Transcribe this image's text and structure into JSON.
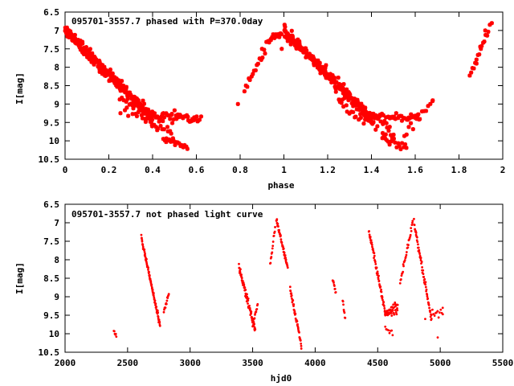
{
  "colors": {
    "points": "#ff0000",
    "axes": "#000000",
    "background": "#ffffff"
  },
  "chart_data": [
    {
      "type": "scatter",
      "title": "095701-3557.7 phased with P=370.0day",
      "xlabel": "phase",
      "ylabel": "I[mag]",
      "xlim": [
        0,
        2
      ],
      "ylim": [
        10.5,
        6.5
      ],
      "y_inverted": true,
      "xticks": [
        "0",
        "0.2",
        "0.4",
        "0.6",
        "0.8",
        "1",
        "1.2",
        "1.4",
        "1.6",
        "1.8",
        "2"
      ],
      "yticks": [
        "6.5",
        "7",
        "7.5",
        "8",
        "8.5",
        "9",
        "9.5",
        "10",
        "10.5"
      ],
      "grid": false,
      "marker": "star",
      "segments": [
        {
          "x0": 0.0,
          "y0": 7.0,
          "x1": 0.4,
          "y1": 9.4,
          "n": 260,
          "noise": 0.12
        },
        {
          "x0": 0.25,
          "y0": 8.9,
          "x1": 0.5,
          "y1": 9.85,
          "n": 45,
          "noise": 0.2
        },
        {
          "x0": 0.4,
          "y0": 9.3,
          "x1": 0.62,
          "y1": 9.4,
          "n": 45,
          "noise": 0.1
        },
        {
          "x0": 0.45,
          "y0": 9.9,
          "x1": 0.56,
          "y1": 10.2,
          "n": 18,
          "noise": 0.08
        },
        {
          "x0": 0.82,
          "y0": 8.6,
          "x1": 0.94,
          "y1": 7.2,
          "n": 20,
          "noise": 0.1
        },
        {
          "x0": 0.94,
          "y0": 7.2,
          "x1": 0.99,
          "y1": 7.1,
          "n": 10,
          "noise": 0.05
        },
        {
          "x0": 1.0,
          "y0": 7.0,
          "x1": 1.4,
          "y1": 9.4,
          "n": 260,
          "noise": 0.12
        },
        {
          "x0": 1.25,
          "y0": 8.9,
          "x1": 1.5,
          "y1": 9.85,
          "n": 45,
          "noise": 0.2
        },
        {
          "x0": 1.4,
          "y0": 9.3,
          "x1": 1.62,
          "y1": 9.4,
          "n": 45,
          "noise": 0.1
        },
        {
          "x0": 1.45,
          "y0": 9.9,
          "x1": 1.56,
          "y1": 10.2,
          "n": 18,
          "noise": 0.08
        },
        {
          "x0": 1.55,
          "y0": 9.8,
          "x1": 1.68,
          "y1": 8.9,
          "n": 14,
          "noise": 0.12
        },
        {
          "x0": 1.85,
          "y0": 8.2,
          "x1": 1.94,
          "y1": 6.9,
          "n": 16,
          "noise": 0.1
        }
      ],
      "points": [
        [
          0.79,
          9.0
        ],
        [
          1.18,
          8.0
        ],
        [
          0.9,
          7.5
        ],
        [
          1.9,
          7.5
        ],
        [
          1.88,
          7.9
        ],
        [
          1.92,
          7.0
        ],
        [
          1.95,
          6.8
        ],
        [
          0.99,
          7.5
        ],
        [
          1.05,
          7.4
        ],
        [
          1.68,
          8.9
        ]
      ]
    },
    {
      "type": "scatter",
      "title": "095701-3557.7 not phased light curve",
      "xlabel": "hjd0",
      "ylabel": "I[mag]",
      "xlim": [
        2000,
        5500
      ],
      "ylim": [
        10.5,
        6.5
      ],
      "y_inverted": true,
      "xticks": [
        "2000",
        "2500",
        "3000",
        "3500",
        "4000",
        "4500",
        "5000",
        "5500"
      ],
      "yticks": [
        "6.5",
        "7",
        "7.5",
        "8",
        "8.5",
        "9",
        "9.5",
        "10",
        "10.5"
      ],
      "grid": false,
      "marker": "dot",
      "segments": [
        {
          "x0": 2390,
          "y0": 9.95,
          "x1": 2410,
          "y1": 10.05,
          "n": 6,
          "noise": 0.03
        },
        {
          "x0": 2610,
          "y0": 7.4,
          "x1": 2760,
          "y1": 9.8,
          "n": 90,
          "noise": 0.06
        },
        {
          "x0": 2790,
          "y0": 9.4,
          "x1": 2830,
          "y1": 8.9,
          "n": 14,
          "noise": 0.06
        },
        {
          "x0": 3390,
          "y0": 8.2,
          "x1": 3520,
          "y1": 9.9,
          "n": 90,
          "noise": 0.08
        },
        {
          "x0": 3500,
          "y0": 9.8,
          "x1": 3540,
          "y1": 9.2,
          "n": 14,
          "noise": 0.06
        },
        {
          "x0": 3640,
          "y0": 8.1,
          "x1": 3680,
          "y1": 7.1,
          "n": 14,
          "noise": 0.08
        },
        {
          "x0": 3690,
          "y0": 6.9,
          "x1": 3780,
          "y1": 8.2,
          "n": 50,
          "noise": 0.06
        },
        {
          "x0": 3800,
          "y0": 8.8,
          "x1": 3890,
          "y1": 10.3,
          "n": 45,
          "noise": 0.08
        },
        {
          "x0": 4140,
          "y0": 8.55,
          "x1": 4165,
          "y1": 8.9,
          "n": 10,
          "noise": 0.04
        },
        {
          "x0": 4220,
          "y0": 9.1,
          "x1": 4240,
          "y1": 9.6,
          "n": 8,
          "noise": 0.06
        },
        {
          "x0": 4430,
          "y0": 7.2,
          "x1": 4560,
          "y1": 9.4,
          "n": 60,
          "noise": 0.08
        },
        {
          "x0": 4560,
          "y0": 9.5,
          "x1": 4660,
          "y1": 9.3,
          "n": 45,
          "noise": 0.12
        },
        {
          "x0": 4560,
          "y0": 9.8,
          "x1": 4620,
          "y1": 10.0,
          "n": 8,
          "noise": 0.06
        },
        {
          "x0": 4680,
          "y0": 8.6,
          "x1": 4780,
          "y1": 7.0,
          "n": 30,
          "noise": 0.08
        },
        {
          "x0": 4790,
          "y0": 7.0,
          "x1": 4930,
          "y1": 9.6,
          "n": 60,
          "noise": 0.08
        },
        {
          "x0": 4930,
          "y0": 9.4,
          "x1": 5020,
          "y1": 9.4,
          "n": 12,
          "noise": 0.12
        }
      ],
      "points": [
        [
          4980,
          10.1
        ],
        [
          4880,
          9.6
        ],
        [
          5020,
          9.3
        ]
      ]
    }
  ]
}
